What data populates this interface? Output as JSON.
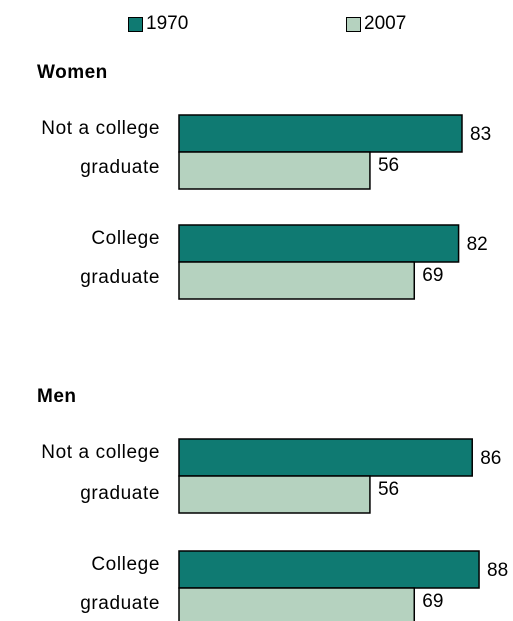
{
  "chart_data": {
    "type": "bar",
    "orientation": "horizontal",
    "legend": {
      "placement": "top",
      "items": [
        {
          "label": "1970",
          "color": "#0f7a72"
        },
        {
          "label": "2007",
          "color": "#b5d2bf"
        }
      ]
    },
    "groups": [
      {
        "title": "Women",
        "categories": [
          {
            "label_line1": "Not a college",
            "label_line2": "graduate",
            "values": [
              83,
              56
            ]
          },
          {
            "label_line1": "College",
            "label_line2": "graduate",
            "values": [
              82,
              69
            ]
          }
        ]
      },
      {
        "title": "Men",
        "categories": [
          {
            "label_line1": "Not a college",
            "label_line2": "graduate",
            "values": [
              86,
              56
            ]
          },
          {
            "label_line1": "College",
            "label_line2": "graduate",
            "values": [
              88,
              69
            ]
          }
        ]
      }
    ],
    "series": [
      {
        "name": "1970",
        "color": "#0f7a72"
      },
      {
        "name": "2007",
        "color": "#b5d2bf"
      }
    ],
    "xlim": [
      0,
      100
    ],
    "grid": false
  }
}
